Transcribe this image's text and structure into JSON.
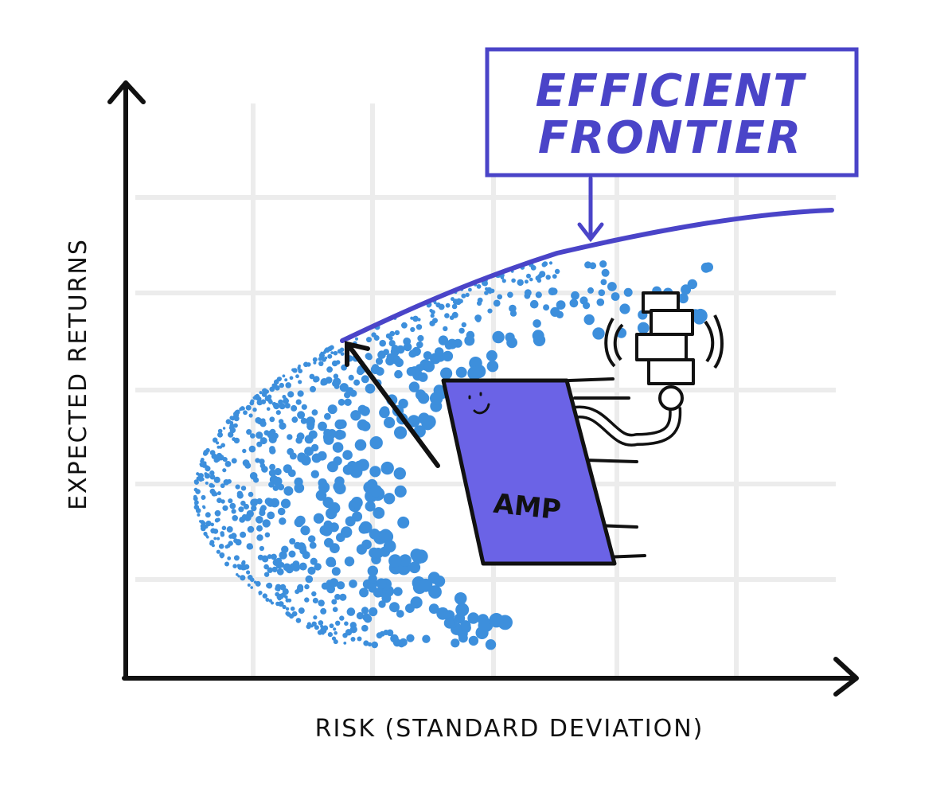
{
  "title": {
    "lines": [
      "EFFICIENT",
      "FRONTIER"
    ]
  },
  "axes": {
    "y_label": "EXPECTED RETURNS",
    "x_label": "RISK (STANDARD DEVIATION)"
  },
  "character": {
    "label": "AMP"
  }
}
